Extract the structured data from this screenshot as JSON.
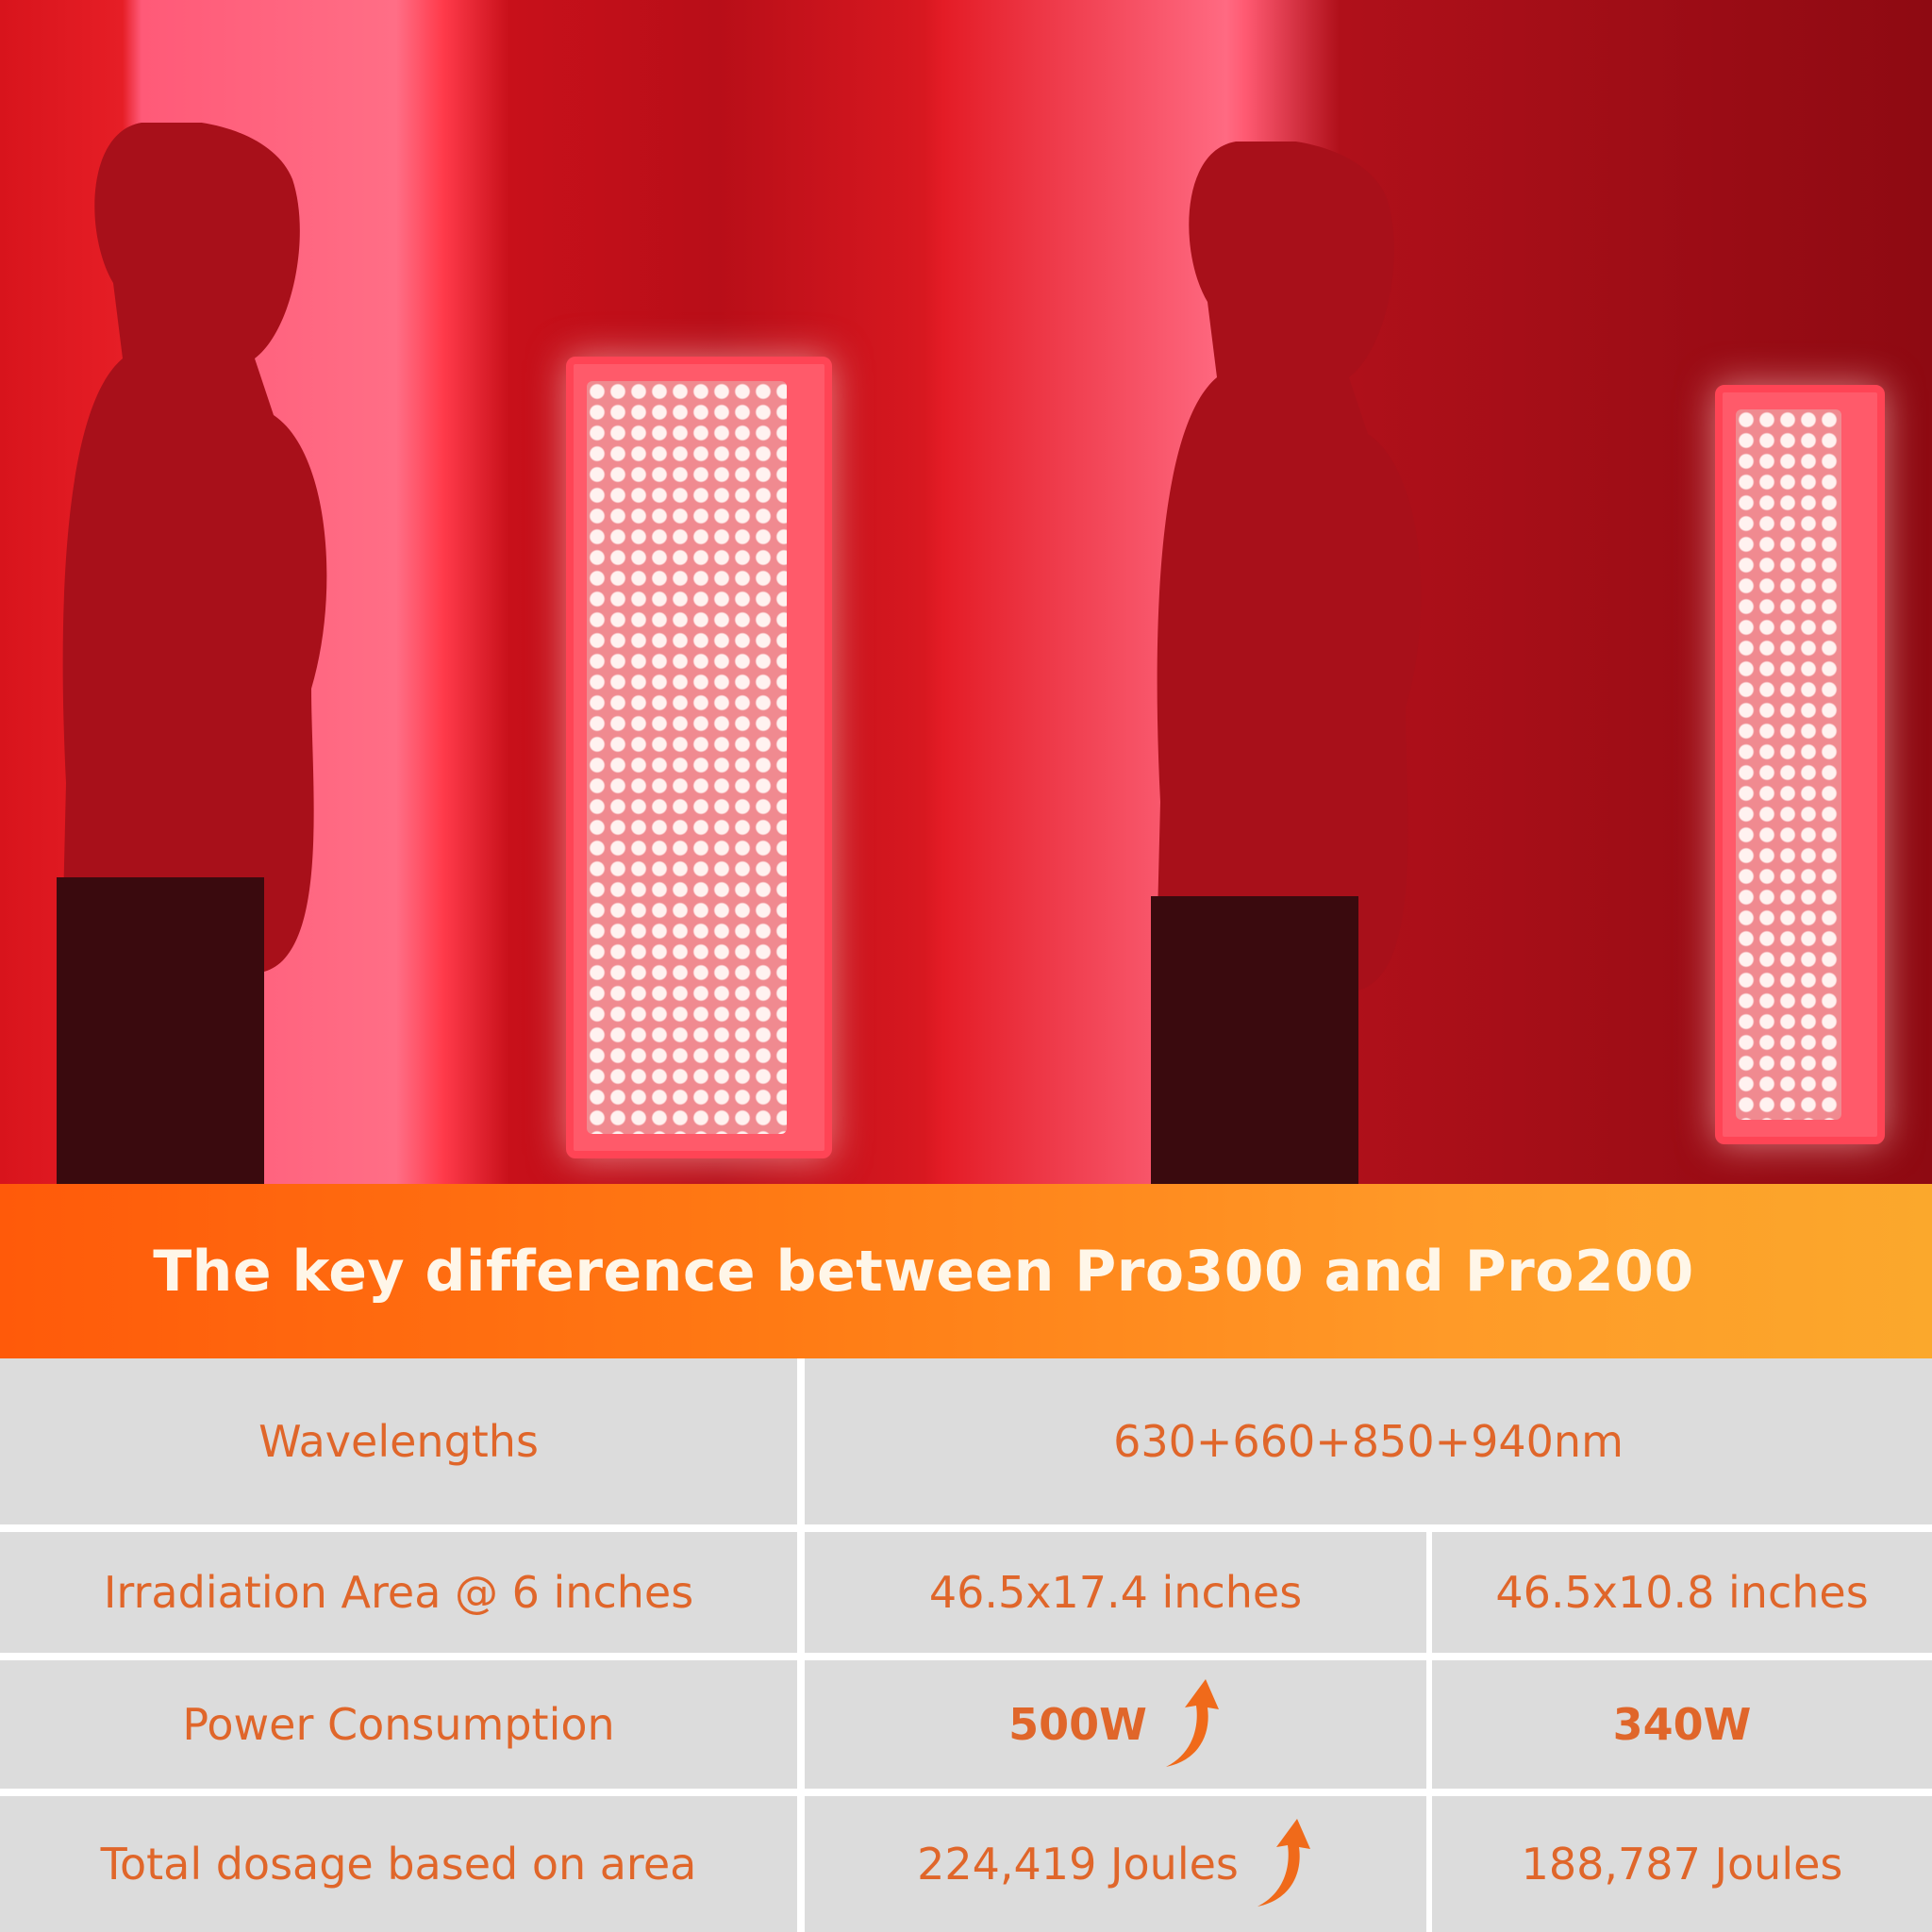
{
  "banner": {
    "title": "The key difference between Pro300 and Pro200"
  },
  "table": {
    "rows": [
      {
        "label": "Wavelengths",
        "shared": "630+660+850+940nm"
      },
      {
        "label": "Irradiation Area @ 6 inches",
        "pro300": "46.5x17.4 inches",
        "pro200": "46.5x10.8 inches"
      },
      {
        "label": "Power Consumption",
        "pro300": "500W",
        "pro300_icon": "arrow-up-icon",
        "pro200": "340W"
      },
      {
        "label": "Total dosage based on area",
        "pro300": "224,419 Joules",
        "pro300_icon": "arrow-up-icon",
        "pro200": "188,787 Joules"
      }
    ]
  },
  "colors": {
    "accent": "#ff7a14",
    "text": "#e0662a",
    "cell_bg": "#dcdcdc",
    "red_light": "#e61e26"
  }
}
